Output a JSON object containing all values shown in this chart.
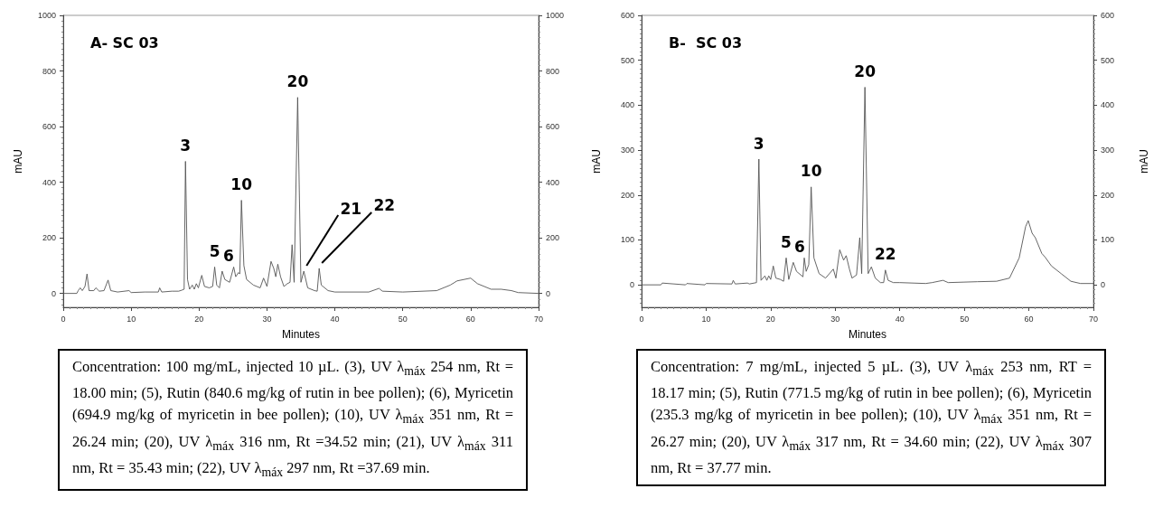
{
  "chart_data": [
    {
      "type": "line",
      "title": "A- SC 03",
      "xlabel": "Minutes",
      "ylabel": "mAU",
      "xlim": [
        0,
        70
      ],
      "xticks": [
        0,
        10,
        20,
        30,
        40,
        50,
        60,
        70
      ],
      "ylim": [
        -50,
        1000
      ],
      "yticks": [
        0,
        200,
        400,
        600,
        800,
        1000
      ],
      "y2lim": [
        -50,
        1000
      ],
      "y2ticks": [
        0,
        200,
        400,
        600,
        800,
        1000
      ],
      "marker": "none",
      "line_style": "solid",
      "series": [
        {
          "color": "#555555",
          "x": [
            0,
            2,
            2.2,
            2.5,
            2.8,
            3.2,
            3.5,
            3.8,
            4.5,
            4.8,
            5.3,
            6,
            6.6,
            7,
            8,
            9.7,
            10,
            12,
            14,
            14.2,
            14.5,
            16,
            17,
            17.5,
            17.8,
            18.0,
            18.3,
            18.6,
            19,
            19.3,
            19.6,
            19.9,
            20.4,
            20.8,
            21.5,
            22.0,
            22.3,
            22.6,
            23,
            23.4,
            23.8,
            24.5,
            25.1,
            25.4,
            25.8,
            26.0,
            26.24,
            26.6,
            27,
            28,
            28.5,
            29,
            29.5,
            30,
            30.6,
            31,
            31.3,
            31.6,
            32,
            32.5,
            33,
            33.4,
            33.7,
            34,
            34.52,
            35,
            35.43,
            36,
            37,
            37.4,
            37.69,
            38,
            39,
            40,
            45,
            46.5,
            47,
            50,
            55,
            57,
            58,
            60,
            61,
            63,
            64.5,
            66,
            67,
            70
          ],
          "values": [
            0,
            0,
            10,
            20,
            10,
            25,
            70,
            10,
            10,
            20,
            8,
            10,
            48,
            10,
            5,
            10,
            3,
            5,
            5,
            20,
            5,
            8,
            8,
            12,
            15,
            475,
            50,
            15,
            30,
            15,
            35,
            20,
            65,
            25,
            20,
            25,
            95,
            30,
            20,
            80,
            50,
            40,
            95,
            60,
            75,
            70,
            335,
            100,
            50,
            30,
            25,
            20,
            55,
            25,
            115,
            90,
            60,
            105,
            60,
            25,
            35,
            40,
            175,
            40,
            705,
            40,
            80,
            20,
            10,
            8,
            90,
            30,
            10,
            5,
            5,
            18,
            8,
            5,
            10,
            30,
            45,
            55,
            35,
            15,
            15,
            10,
            3,
            0
          ]
        }
      ],
      "annotations": [
        {
          "text": "3",
          "x": 18.0,
          "y": 475
        },
        {
          "text": "5",
          "x": 22.3,
          "y": 95
        },
        {
          "text": "6",
          "x": 23.4,
          "y": 80
        },
        {
          "text": "10",
          "x": 26.24,
          "y": 335
        },
        {
          "text": "20",
          "x": 34.52,
          "y": 705
        },
        {
          "text": "21",
          "x": 35.43,
          "y": 80
        },
        {
          "text": "22",
          "x": 37.69,
          "y": 90
        },
        "Concentration: 100 mg/mL, injected 10 µL. (3), UV λ$_{máx}$ 254 nm, Rt = 18.00 min; (5), Rutin (840.6 mg/kg of rutin in bee pollen); (6), Myricetin (694.9 mg/kg of myricetin in bee pollen); (10), UV λ$_{máx}$ 351 nm, Rt = 26.24 min; (20), UV λ$_{máx}$ 316 nm,  Rt =34.52 min;  (21), UV λ$_{máx}$ 311 nm, Rt = 35.43 min; (22), UV λ$_{máx}$ 297 nm, Rt =37.69 min."
      ]
    },
    {
      "type": "line",
      "title": "B-  SC 03",
      "xlabel": "Minutes",
      "ylabel": "mAU",
      "y2label": "mAU",
      "xlim": [
        0,
        70
      ],
      "xticks": [
        0,
        10,
        20,
        30,
        40,
        50,
        60,
        70
      ],
      "ylim": [
        -50,
        600
      ],
      "yticks": [
        0,
        100,
        200,
        300,
        400,
        500,
        600
      ],
      "y2lim": [
        -50,
        600
      ],
      "y2ticks": [
        0,
        100,
        200,
        300,
        400,
        500,
        600
      ],
      "marker": "none",
      "line_style": "solid",
      "series": [
        {
          "color": "#555555",
          "x": [
            0,
            3,
            3.2,
            6.8,
            7,
            9.8,
            10,
            14,
            14.2,
            14.5,
            16.4,
            16.7,
            17.8,
            18.17,
            18.5,
            19.1,
            19.4,
            19.7,
            20.0,
            20.4,
            20.8,
            21.5,
            22.0,
            22.4,
            22.8,
            23.5,
            24,
            25,
            25.2,
            25.5,
            25.9,
            26.27,
            26.7,
            27.5,
            28.5,
            29.7,
            30.1,
            30.7,
            31.3,
            31.7,
            32.2,
            32.6,
            33.3,
            33.8,
            34.1,
            34.6,
            35.1,
            35.6,
            36.2,
            37,
            37.5,
            37.77,
            38.2,
            39,
            40,
            44,
            45,
            46.7,
            47.5,
            52,
            55,
            57,
            58.5,
            59.5,
            59.9,
            60.5,
            61,
            62,
            62.5,
            63.5,
            65,
            66.5,
            68,
            70
          ],
          "values": [
            0,
            0,
            4,
            0,
            3,
            0,
            3,
            2,
            10,
            2,
            4,
            2,
            5,
            280,
            10,
            20,
            10,
            20,
            12,
            42,
            15,
            12,
            8,
            60,
            12,
            50,
            30,
            18,
            60,
            30,
            45,
            218,
            60,
            25,
            15,
            35,
            15,
            78,
            55,
            65,
            35,
            15,
            22,
            105,
            25,
            440,
            25,
            40,
            15,
            5,
            5,
            33,
            10,
            5,
            5,
            3,
            5,
            10,
            5,
            7,
            8,
            15,
            60,
            130,
            143,
            115,
            105,
            70,
            62,
            42,
            25,
            8,
            3,
            3
          ]
        }
      ],
      "annotations": [
        {
          "text": "3",
          "x": 18.17,
          "y": 280
        },
        {
          "text": "5",
          "x": 22.4,
          "y": 60
        },
        {
          "text": "6",
          "x": 23.5,
          "y": 50
        },
        {
          "text": "10",
          "x": 26.27,
          "y": 218
        },
        {
          "text": "20",
          "x": 34.6,
          "y": 440
        },
        {
          "text": "22",
          "x": 37.77,
          "y": 33
        },
        "Concentration: 7 mg/mL, injected  5 µL. (3), UV λ$_{máx}$ 253 nm, RT = 18.17 min; (5), Rutin (771.5 mg/kg of rutin in bee pollen); (6), Myricetin (235.3 mg/kg of myricetin in bee pollen); (10), UV λ$_{máx}$ 351 nm, Rt = 26.27 min; (20), UV λ$_{máx}$ 317 nm, Rt = 34.60 min; (22), UV λ$_{máx}$ 307 nm, Rt = 37.77 min."
      ]
    }
  ]
}
